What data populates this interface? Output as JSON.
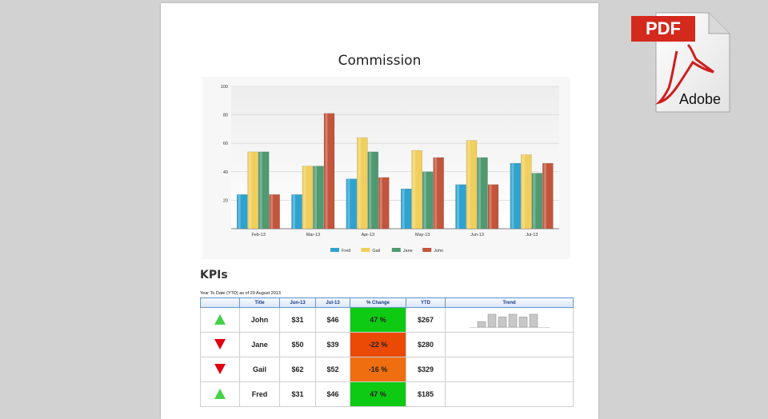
{
  "page": {
    "title": "Commission"
  },
  "chart_data": {
    "type": "bar",
    "title": "",
    "categories": [
      "Feb-13",
      "Mar-13",
      "Apr-13",
      "May-13",
      "Jun-13",
      "Jul-13"
    ],
    "series": [
      {
        "name": "Fred",
        "values": [
          24,
          24,
          35,
          28,
          31,
          46
        ],
        "color": "#2ea3cf"
      },
      {
        "name": "Gail",
        "values": [
          54,
          44,
          64,
          55,
          62,
          52
        ],
        "color": "#f1cf5c"
      },
      {
        "name": "Jane",
        "values": [
          54,
          44,
          54,
          40,
          50,
          39
        ],
        "color": "#4f9a70"
      },
      {
        "name": "John",
        "values": [
          24,
          81,
          36,
          50,
          31,
          46
        ],
        "color": "#c2553b"
      }
    ],
    "ylim": [
      0,
      100
    ],
    "yticks": [
      "20",
      "40",
      "60",
      "80",
      "100"
    ],
    "grid": true,
    "legend_position": "bottom"
  },
  "kpis": {
    "heading": "KPIs",
    "subtitle": "Year To Date (YTD) as of 20 August 2013",
    "columns": [
      "",
      "Title",
      "Jun-13",
      "Jul-13",
      "% Change",
      "YTD",
      "Trend"
    ],
    "rows": [
      {
        "direction": "up",
        "title": "John",
        "jun": "$31",
        "jul": "$46",
        "change": "47 %",
        "change_color": "#0fca12",
        "ytd": "$267",
        "trend": [
          6,
          14,
          11,
          14,
          11,
          14
        ]
      },
      {
        "direction": "down",
        "title": "Jane",
        "jun": "$50",
        "jul": "$39",
        "change": "-22 %",
        "change_color": "#ea4a06",
        "ytd": "$280",
        "trend": []
      },
      {
        "direction": "down",
        "title": "Gail",
        "jun": "$62",
        "jul": "$52",
        "change": "-16 %",
        "change_color": "#ee6e10",
        "ytd": "$329",
        "trend": []
      },
      {
        "direction": "up",
        "title": "Fred",
        "jun": "$31",
        "jul": "$46",
        "change": "47 %",
        "change_color": "#0fca12",
        "ytd": "$185",
        "trend": []
      }
    ]
  },
  "pdf_badge": {
    "label": "PDF",
    "brand": "Adobe",
    "color": "#d42a1e"
  }
}
